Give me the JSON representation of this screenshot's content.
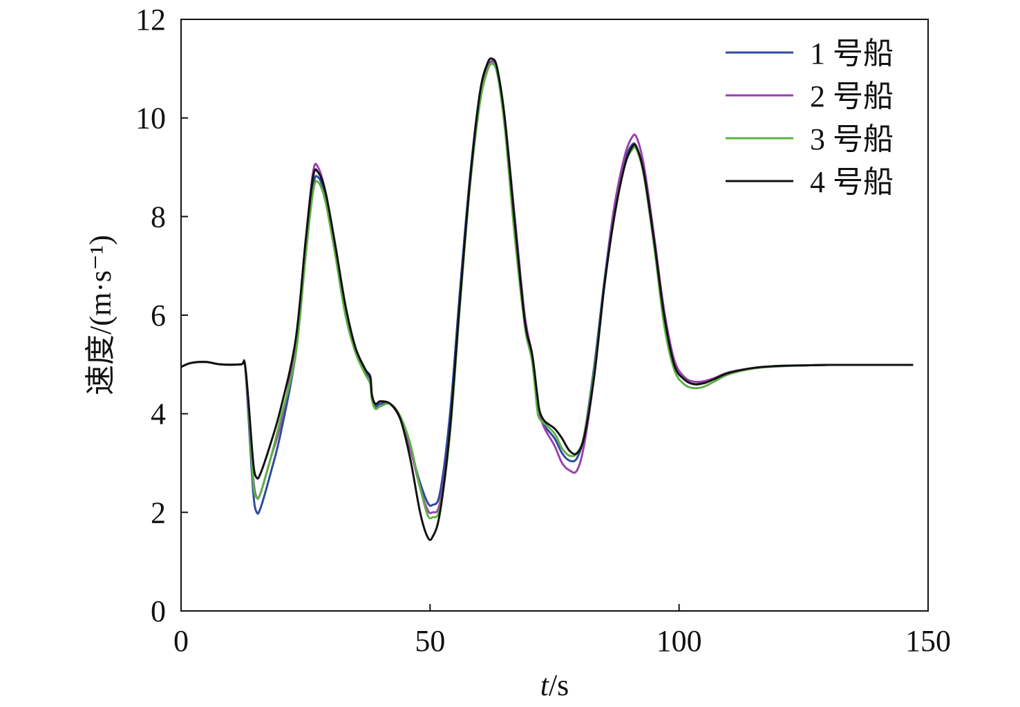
{
  "chart_data": {
    "type": "line",
    "xlabel": {
      "italic": "t",
      "rest": "/s"
    },
    "ylabel": "速度/(m·s⁻¹)",
    "xlim": [
      0,
      150
    ],
    "ylim": [
      0,
      12
    ],
    "xticks": [
      0,
      50,
      100,
      150
    ],
    "yticks": [
      0,
      2,
      4,
      6,
      8,
      10,
      12
    ],
    "grid": false,
    "legend_position": "top-right",
    "series": [
      {
        "name": "1 号船",
        "color": "#2f4a9b",
        "x": [
          0,
          2,
          5,
          8,
          12,
          12.8,
          13.5,
          14.5,
          15.2,
          16,
          18,
          20,
          23,
          25,
          26.5,
          27.5,
          29,
          31,
          33,
          35,
          37,
          38,
          38.3,
          39,
          40,
          42,
          44,
          46,
          48,
          49.5,
          50.5,
          52,
          54,
          56,
          58,
          60,
          61.5,
          62.5,
          63.5,
          65,
          67,
          69,
          70.5,
          71.5,
          72,
          73,
          75,
          76.5,
          78,
          79.5,
          81,
          83,
          85,
          87,
          89,
          90.5,
          91.5,
          93,
          95,
          97,
          99,
          101,
          103,
          105,
          107,
          110,
          115,
          120,
          125,
          130,
          140,
          147
        ],
        "y": [
          4.95,
          5.03,
          5.05,
          5.0,
          5.0,
          5.02,
          4.0,
          2.4,
          2.0,
          2.1,
          2.8,
          3.6,
          5.2,
          7.2,
          8.6,
          8.8,
          8.4,
          7.3,
          6.1,
          5.3,
          4.85,
          4.7,
          4.35,
          4.15,
          4.2,
          4.2,
          3.9,
          3.3,
          2.6,
          2.2,
          2.15,
          2.4,
          4.0,
          6.5,
          8.8,
          10.5,
          11.0,
          11.1,
          10.9,
          9.9,
          7.8,
          5.8,
          5.1,
          4.3,
          3.95,
          3.75,
          3.5,
          3.2,
          3.05,
          3.1,
          3.6,
          5.0,
          6.7,
          8.2,
          9.1,
          9.45,
          9.4,
          8.8,
          7.4,
          5.9,
          5.0,
          4.7,
          4.6,
          4.63,
          4.7,
          4.82,
          4.92,
          4.97,
          4.98,
          4.99,
          4.99,
          4.99
        ]
      },
      {
        "name": "2 号船",
        "color": "#9a3fb0",
        "x": [
          0,
          2,
          5,
          8,
          12,
          12.8,
          13.5,
          14.5,
          15.2,
          16,
          18,
          20,
          23,
          25,
          26.5,
          27.5,
          29,
          31,
          33,
          35,
          37,
          38,
          38.3,
          39,
          40,
          42,
          44,
          46,
          48,
          49.5,
          50.5,
          52,
          54,
          56,
          58,
          60,
          61.5,
          62.5,
          63.5,
          65,
          67,
          69,
          70.5,
          71.5,
          72,
          73,
          75,
          76.5,
          78,
          79.5,
          81,
          83,
          85,
          87,
          89,
          90.5,
          91.5,
          93,
          95,
          97,
          99,
          101,
          103,
          105,
          107,
          110,
          115,
          120,
          125,
          130,
          140,
          147
        ],
        "y": [
          4.95,
          5.03,
          5.05,
          5.0,
          5.0,
          5.02,
          4.1,
          2.7,
          2.3,
          2.4,
          3.1,
          3.8,
          5.4,
          7.5,
          8.9,
          9.0,
          8.5,
          7.4,
          6.2,
          5.35,
          4.9,
          4.75,
          4.4,
          4.2,
          4.25,
          4.2,
          3.9,
          3.3,
          2.5,
          2.05,
          2.0,
          2.2,
          3.7,
          6.3,
          8.7,
          10.4,
          11.0,
          11.15,
          10.95,
          10.0,
          8.0,
          6.0,
          5.2,
          4.35,
          4.0,
          3.7,
          3.35,
          3.0,
          2.85,
          2.85,
          3.4,
          4.8,
          6.6,
          8.2,
          9.2,
          9.6,
          9.6,
          9.0,
          7.6,
          6.1,
          5.1,
          4.75,
          4.65,
          4.66,
          4.72,
          4.84,
          4.93,
          4.97,
          4.98,
          4.99,
          4.99,
          4.99
        ]
      },
      {
        "name": "3 号船",
        "color": "#5db143",
        "x": [
          0,
          2,
          5,
          8,
          12,
          12.8,
          13.5,
          14.5,
          15.2,
          16,
          18,
          20,
          23,
          25,
          26.5,
          27.5,
          29,
          31,
          33,
          35,
          37,
          38,
          38.3,
          39,
          40,
          42,
          44,
          46,
          48,
          49.5,
          50.5,
          52,
          54,
          56,
          58,
          60,
          61.5,
          62.5,
          63.5,
          65,
          67,
          69,
          70.5,
          71.5,
          72,
          73,
          75,
          76.5,
          78,
          79.5,
          81,
          83,
          85,
          87,
          89,
          90.5,
          91.5,
          93,
          95,
          97,
          99,
          101,
          103,
          105,
          107,
          110,
          115,
          120,
          125,
          130,
          140,
          147
        ],
        "y": [
          4.95,
          5.03,
          5.05,
          5.0,
          5.0,
          5.02,
          4.2,
          2.6,
          2.3,
          2.4,
          3.1,
          3.9,
          5.2,
          7.2,
          8.5,
          8.7,
          8.3,
          7.2,
          6.0,
          5.25,
          4.8,
          4.6,
          4.3,
          4.1,
          4.15,
          4.2,
          3.95,
          3.4,
          2.5,
          1.95,
          1.9,
          2.1,
          3.6,
          6.2,
          8.6,
          10.3,
          10.95,
          11.1,
          10.9,
          9.8,
          7.6,
          5.8,
          5.05,
          4.1,
          3.9,
          3.8,
          3.6,
          3.3,
          3.15,
          3.2,
          3.6,
          4.9,
          6.6,
          8.0,
          9.0,
          9.35,
          9.35,
          8.8,
          7.4,
          5.8,
          4.9,
          4.6,
          4.52,
          4.55,
          4.65,
          4.8,
          4.92,
          4.96,
          4.98,
          4.99,
          4.99,
          4.99
        ]
      },
      {
        "name": "4 号船",
        "color": "#111111",
        "x": [
          0,
          2,
          5,
          8,
          12,
          12.8,
          13.5,
          14.5,
          15.2,
          16,
          18,
          20,
          23,
          25,
          26.5,
          27.5,
          29,
          31,
          33,
          35,
          37,
          38,
          38.3,
          39,
          40,
          42,
          44,
          46,
          48,
          49.5,
          50.5,
          52,
          54,
          56,
          58,
          60,
          61.5,
          62.5,
          63.5,
          65,
          67,
          69,
          70.5,
          71.5,
          72,
          73,
          75,
          76.5,
          78,
          79.5,
          81,
          83,
          85,
          87,
          89,
          90.5,
          91.5,
          93,
          95,
          97,
          99,
          101,
          103,
          105,
          107,
          110,
          115,
          120,
          125,
          130,
          140,
          147
        ],
        "y": [
          4.95,
          5.03,
          5.05,
          5.0,
          5.0,
          5.02,
          4.3,
          3.0,
          2.7,
          2.8,
          3.4,
          4.1,
          5.5,
          7.5,
          8.8,
          8.9,
          8.5,
          7.4,
          6.2,
          5.35,
          4.9,
          4.75,
          4.4,
          4.2,
          4.25,
          4.2,
          3.9,
          3.1,
          2.0,
          1.5,
          1.5,
          2.0,
          3.7,
          6.3,
          8.7,
          10.5,
          11.1,
          11.2,
          11.0,
          10.0,
          7.9,
          5.9,
          5.2,
          4.4,
          4.05,
          3.85,
          3.7,
          3.5,
          3.25,
          3.2,
          3.55,
          4.8,
          6.6,
          8.0,
          9.0,
          9.4,
          9.4,
          8.85,
          7.5,
          6.0,
          5.0,
          4.7,
          4.6,
          4.62,
          4.7,
          4.83,
          4.93,
          4.97,
          4.98,
          4.99,
          4.99,
          4.99
        ]
      }
    ]
  }
}
